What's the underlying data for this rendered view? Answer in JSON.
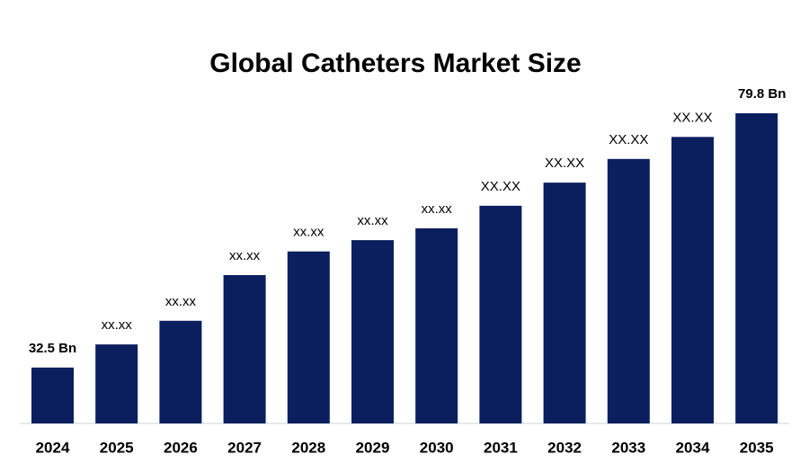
{
  "chart_data": {
    "type": "bar",
    "title": "Global Catheters Market Size",
    "categories": [
      "2024",
      "2025",
      "2026",
      "2027",
      "2028",
      "2029",
      "2030",
      "2031",
      "2032",
      "2033",
      "2034",
      "2035"
    ],
    "values": [
      32.5,
      36.8,
      41.2,
      49.7,
      54.1,
      56.2,
      58.4,
      62.6,
      66.9,
      71.3,
      75.4,
      79.8
    ],
    "value_labels": [
      "32.5 Bn",
      "xx.xx",
      "xx.xx",
      "xx.xx",
      "xx.xx",
      "xx.xx",
      "xx.xx",
      "XX.XX",
      "XX.XX",
      "XX.XX",
      "XX.XX",
      "79.8 Bn"
    ],
    "color": "#0b1f5e",
    "ylim": [
      22.1,
      79.8
    ]
  }
}
